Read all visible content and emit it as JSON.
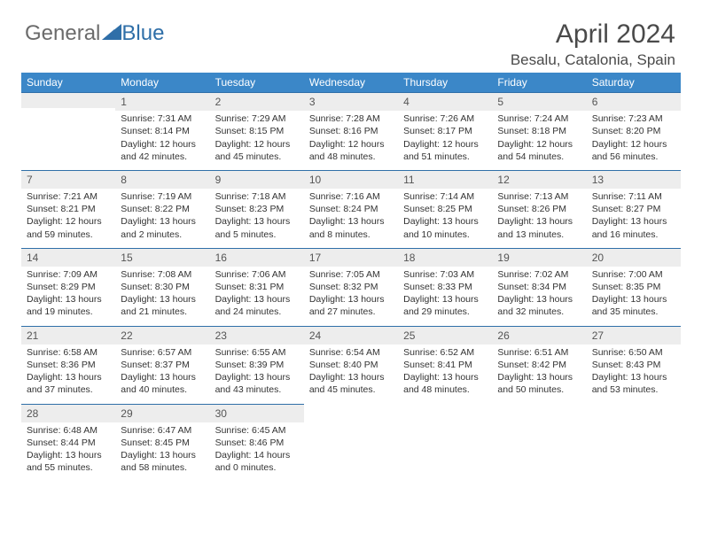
{
  "brand": {
    "part1": "General",
    "part2": "Blue",
    "part2_color": "#2f6fa8"
  },
  "title": "April 2024",
  "location": "Besalu, Catalonia, Spain",
  "colors": {
    "header_bg": "#3b87c8",
    "header_text": "#ffffff",
    "daynum_bg": "#ededed",
    "daynum_border": "#2f6fa8",
    "text": "#333333",
    "brand_gray": "#6b6b6b"
  },
  "weekdays": [
    "Sunday",
    "Monday",
    "Tuesday",
    "Wednesday",
    "Thursday",
    "Friday",
    "Saturday"
  ],
  "weeks": [
    [
      null,
      {
        "day": "1",
        "sunrise": "Sunrise: 7:31 AM",
        "sunset": "Sunset: 8:14 PM",
        "day1": "Daylight: 12 hours",
        "day2": "and 42 minutes."
      },
      {
        "day": "2",
        "sunrise": "Sunrise: 7:29 AM",
        "sunset": "Sunset: 8:15 PM",
        "day1": "Daylight: 12 hours",
        "day2": "and 45 minutes."
      },
      {
        "day": "3",
        "sunrise": "Sunrise: 7:28 AM",
        "sunset": "Sunset: 8:16 PM",
        "day1": "Daylight: 12 hours",
        "day2": "and 48 minutes."
      },
      {
        "day": "4",
        "sunrise": "Sunrise: 7:26 AM",
        "sunset": "Sunset: 8:17 PM",
        "day1": "Daylight: 12 hours",
        "day2": "and 51 minutes."
      },
      {
        "day": "5",
        "sunrise": "Sunrise: 7:24 AM",
        "sunset": "Sunset: 8:18 PM",
        "day1": "Daylight: 12 hours",
        "day2": "and 54 minutes."
      },
      {
        "day": "6",
        "sunrise": "Sunrise: 7:23 AM",
        "sunset": "Sunset: 8:20 PM",
        "day1": "Daylight: 12 hours",
        "day2": "and 56 minutes."
      }
    ],
    [
      {
        "day": "7",
        "sunrise": "Sunrise: 7:21 AM",
        "sunset": "Sunset: 8:21 PM",
        "day1": "Daylight: 12 hours",
        "day2": "and 59 minutes."
      },
      {
        "day": "8",
        "sunrise": "Sunrise: 7:19 AM",
        "sunset": "Sunset: 8:22 PM",
        "day1": "Daylight: 13 hours",
        "day2": "and 2 minutes."
      },
      {
        "day": "9",
        "sunrise": "Sunrise: 7:18 AM",
        "sunset": "Sunset: 8:23 PM",
        "day1": "Daylight: 13 hours",
        "day2": "and 5 minutes."
      },
      {
        "day": "10",
        "sunrise": "Sunrise: 7:16 AM",
        "sunset": "Sunset: 8:24 PM",
        "day1": "Daylight: 13 hours",
        "day2": "and 8 minutes."
      },
      {
        "day": "11",
        "sunrise": "Sunrise: 7:14 AM",
        "sunset": "Sunset: 8:25 PM",
        "day1": "Daylight: 13 hours",
        "day2": "and 10 minutes."
      },
      {
        "day": "12",
        "sunrise": "Sunrise: 7:13 AM",
        "sunset": "Sunset: 8:26 PM",
        "day1": "Daylight: 13 hours",
        "day2": "and 13 minutes."
      },
      {
        "day": "13",
        "sunrise": "Sunrise: 7:11 AM",
        "sunset": "Sunset: 8:27 PM",
        "day1": "Daylight: 13 hours",
        "day2": "and 16 minutes."
      }
    ],
    [
      {
        "day": "14",
        "sunrise": "Sunrise: 7:09 AM",
        "sunset": "Sunset: 8:29 PM",
        "day1": "Daylight: 13 hours",
        "day2": "and 19 minutes."
      },
      {
        "day": "15",
        "sunrise": "Sunrise: 7:08 AM",
        "sunset": "Sunset: 8:30 PM",
        "day1": "Daylight: 13 hours",
        "day2": "and 21 minutes."
      },
      {
        "day": "16",
        "sunrise": "Sunrise: 7:06 AM",
        "sunset": "Sunset: 8:31 PM",
        "day1": "Daylight: 13 hours",
        "day2": "and 24 minutes."
      },
      {
        "day": "17",
        "sunrise": "Sunrise: 7:05 AM",
        "sunset": "Sunset: 8:32 PM",
        "day1": "Daylight: 13 hours",
        "day2": "and 27 minutes."
      },
      {
        "day": "18",
        "sunrise": "Sunrise: 7:03 AM",
        "sunset": "Sunset: 8:33 PM",
        "day1": "Daylight: 13 hours",
        "day2": "and 29 minutes."
      },
      {
        "day": "19",
        "sunrise": "Sunrise: 7:02 AM",
        "sunset": "Sunset: 8:34 PM",
        "day1": "Daylight: 13 hours",
        "day2": "and 32 minutes."
      },
      {
        "day": "20",
        "sunrise": "Sunrise: 7:00 AM",
        "sunset": "Sunset: 8:35 PM",
        "day1": "Daylight: 13 hours",
        "day2": "and 35 minutes."
      }
    ],
    [
      {
        "day": "21",
        "sunrise": "Sunrise: 6:58 AM",
        "sunset": "Sunset: 8:36 PM",
        "day1": "Daylight: 13 hours",
        "day2": "and 37 minutes."
      },
      {
        "day": "22",
        "sunrise": "Sunrise: 6:57 AM",
        "sunset": "Sunset: 8:37 PM",
        "day1": "Daylight: 13 hours",
        "day2": "and 40 minutes."
      },
      {
        "day": "23",
        "sunrise": "Sunrise: 6:55 AM",
        "sunset": "Sunset: 8:39 PM",
        "day1": "Daylight: 13 hours",
        "day2": "and 43 minutes."
      },
      {
        "day": "24",
        "sunrise": "Sunrise: 6:54 AM",
        "sunset": "Sunset: 8:40 PM",
        "day1": "Daylight: 13 hours",
        "day2": "and 45 minutes."
      },
      {
        "day": "25",
        "sunrise": "Sunrise: 6:52 AM",
        "sunset": "Sunset: 8:41 PM",
        "day1": "Daylight: 13 hours",
        "day2": "and 48 minutes."
      },
      {
        "day": "26",
        "sunrise": "Sunrise: 6:51 AM",
        "sunset": "Sunset: 8:42 PM",
        "day1": "Daylight: 13 hours",
        "day2": "and 50 minutes."
      },
      {
        "day": "27",
        "sunrise": "Sunrise: 6:50 AM",
        "sunset": "Sunset: 8:43 PM",
        "day1": "Daylight: 13 hours",
        "day2": "and 53 minutes."
      }
    ],
    [
      {
        "day": "28",
        "sunrise": "Sunrise: 6:48 AM",
        "sunset": "Sunset: 8:44 PM",
        "day1": "Daylight: 13 hours",
        "day2": "and 55 minutes."
      },
      {
        "day": "29",
        "sunrise": "Sunrise: 6:47 AM",
        "sunset": "Sunset: 8:45 PM",
        "day1": "Daylight: 13 hours",
        "day2": "and 58 minutes."
      },
      {
        "day": "30",
        "sunrise": "Sunrise: 6:45 AM",
        "sunset": "Sunset: 8:46 PM",
        "day1": "Daylight: 14 hours",
        "day2": "and 0 minutes."
      },
      null,
      null,
      null,
      null
    ]
  ]
}
